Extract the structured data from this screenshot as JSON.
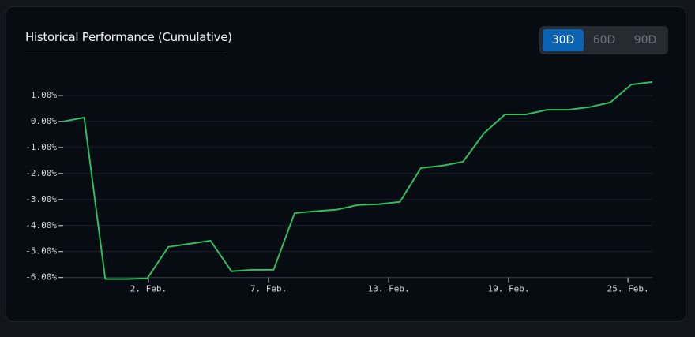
{
  "header": {
    "title": "Historical Performance (Cumulative)",
    "buttons": [
      "30D",
      "60D",
      "90D"
    ],
    "active": 0
  },
  "chart_data": {
    "type": "line",
    "categories": [
      null,
      null,
      null,
      null,
      null,
      null,
      null,
      null,
      null,
      null,
      null,
      null,
      null,
      null,
      null,
      null,
      null,
      null,
      null,
      null,
      null,
      null,
      null,
      null,
      null,
      null,
      null,
      null,
      null
    ],
    "series": [
      {
        "color": "#2ebd5f",
        "values": [
          0.0,
          0.15,
          -6.06,
          -6.06,
          -6.03,
          -4.82,
          -4.7,
          -4.58,
          -5.76,
          -5.7,
          -5.7,
          -3.52,
          -3.45,
          -3.39,
          -3.21,
          -3.18,
          -3.09,
          -1.79,
          -1.7,
          -1.55,
          -0.45,
          0.27,
          0.27,
          0.45,
          0.45,
          0.55,
          0.73,
          1.42,
          1.52
        ]
      }
    ],
    "xlim": [
      0,
      28
    ],
    "xticks": [
      {
        "value": 4.05,
        "label": "2. Feb."
      },
      {
        "value": 9.76,
        "label": "7. Feb."
      },
      {
        "value": 15.47,
        "label": "13. Feb."
      },
      {
        "value": 21.17,
        "label": "19. Feb."
      },
      {
        "value": 26.84,
        "label": "25. Feb."
      }
    ],
    "ylim": [
      -6.1,
      2.0
    ],
    "yticks": [
      {
        "value": 1,
        "label": "1.00%"
      },
      {
        "value": 0,
        "label": "0.00%"
      },
      {
        "value": -1,
        "label": "-1.00%"
      },
      {
        "value": -2,
        "label": "-2.00%"
      },
      {
        "value": -3,
        "label": "-3.00%"
      },
      {
        "value": -4,
        "label": "-4.00%"
      },
      {
        "value": -5,
        "label": "-5.00%"
      },
      {
        "value": -6,
        "label": "-6.00%"
      }
    ],
    "grid": true
  }
}
